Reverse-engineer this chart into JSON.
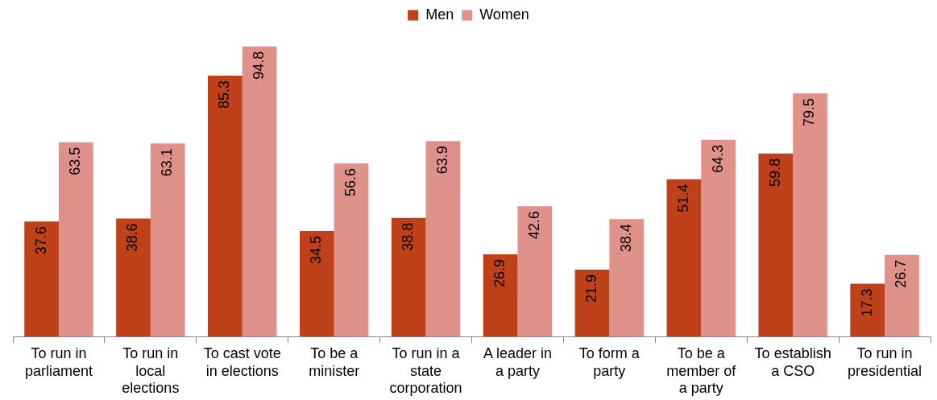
{
  "chart_data": {
    "type": "bar",
    "categories": [
      "To run in parliament",
      "To run in local elections",
      "To cast vote in elections",
      "To be a minister",
      "To run in a state corporation",
      "A leader in a party",
      "To form a party",
      "To be a member of a party",
      "To establish a CSO",
      "To run in presidential"
    ],
    "series": [
      {
        "name": "Men",
        "color": "#bf4119",
        "values": [
          37.6,
          38.6,
          85.3,
          34.5,
          38.8,
          26.9,
          21.9,
          51.4,
          59.8,
          17.3
        ]
      },
      {
        "name": "Women",
        "color": "#e0918a",
        "values": [
          63.5,
          63.1,
          94.8,
          56.6,
          63.9,
          42.6,
          38.4,
          64.3,
          79.5,
          26.7
        ]
      }
    ],
    "relative": false,
    "data_labels": true,
    "legend": "top",
    "grid": false
  }
}
